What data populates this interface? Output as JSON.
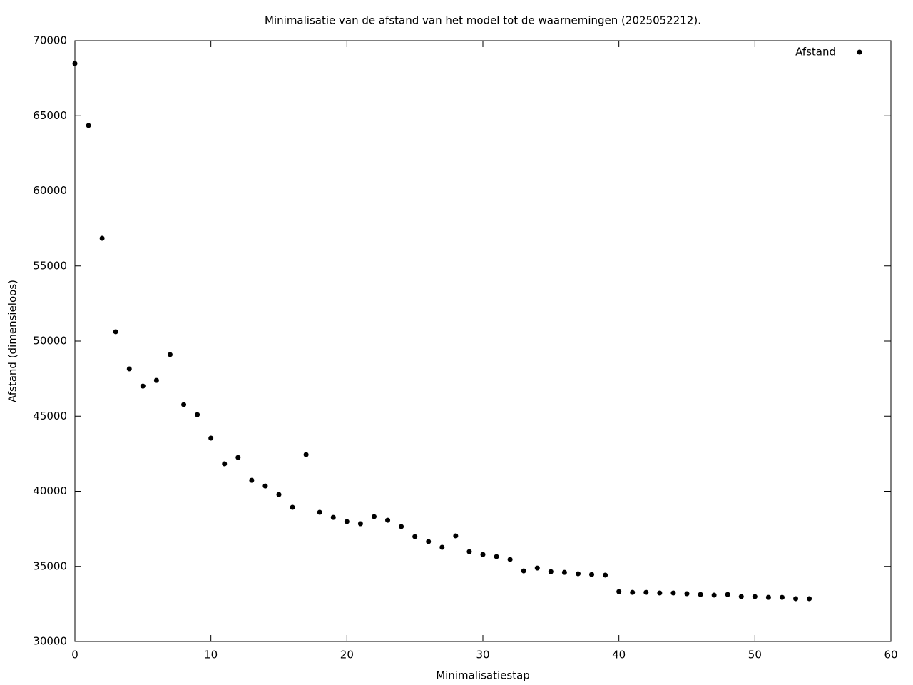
{
  "chart_data": {
    "type": "scatter",
    "title": "Minimalisatie van de afstand van het model tot de waarnemingen (2025052212).",
    "x_label": "Minimalisatiestap",
    "y_label": "Afstand (dimensieloos)",
    "legend_position": "top-right",
    "series": [
      {
        "name": "Afstand",
        "color": "#000000",
        "x": [
          0,
          1,
          2,
          3,
          4,
          5,
          6,
          7,
          8,
          9,
          10,
          11,
          12,
          13,
          14,
          15,
          16,
          17,
          18,
          19,
          20,
          21,
          22,
          23,
          24,
          25,
          26,
          27,
          28,
          29,
          30,
          31,
          32,
          33,
          34,
          35,
          36,
          37,
          38,
          39,
          40,
          41,
          42,
          43,
          44,
          45,
          46,
          47,
          48,
          49,
          50,
          51,
          52,
          53,
          54
        ],
        "values": [
          68480,
          64350,
          56840,
          50620,
          48150,
          47000,
          47380,
          49100,
          45770,
          45100,
          43540,
          41830,
          42250,
          40730,
          40350,
          39780,
          38930,
          42440,
          38600,
          38260,
          37980,
          37840,
          38310,
          38070,
          37650,
          36980,
          36650,
          36270,
          37030,
          35980,
          35790,
          35650,
          35460,
          34700,
          34890,
          34650,
          34600,
          34510,
          34460,
          34420,
          33320,
          33270,
          33270,
          33230,
          33230,
          33180,
          33130,
          33090,
          33130,
          32990,
          32990,
          32940,
          32940,
          32850,
          32850
        ]
      }
    ],
    "xlim": [
      0,
      60
    ],
    "xticks": [
      0,
      10,
      20,
      30,
      40,
      50,
      60
    ],
    "ylim": [
      30000,
      70000
    ],
    "yticks": [
      30000,
      35000,
      40000,
      45000,
      50000,
      55000,
      60000,
      65000,
      70000
    ],
    "grid": false
  }
}
